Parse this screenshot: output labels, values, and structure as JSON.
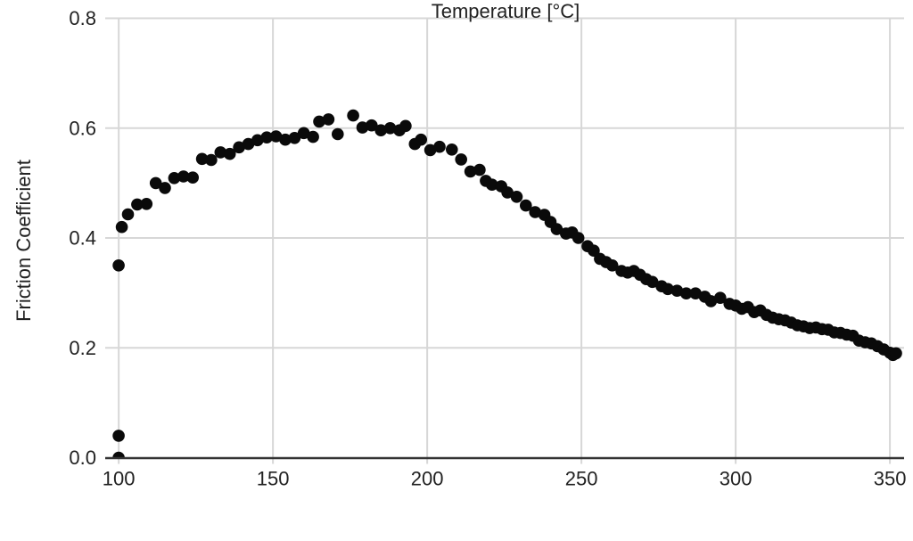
{
  "chart_data": {
    "type": "scatter",
    "title": "",
    "xlabel": "Temperature [°C]",
    "ylabel": "Friction Coefficient",
    "xlim": [
      96.2,
      354.6
    ],
    "ylim": [
      0.0,
      0.8
    ],
    "grid": true,
    "legend": "none",
    "marker": {
      "shape": "circle",
      "radius_px": 6.8,
      "color": "#0a0a0a"
    },
    "colors": {
      "grid": "#d7d7d7",
      "axis_line": "#333333",
      "tick_text": "#222222",
      "background": "#ffffff"
    },
    "xticks": {
      "values": [
        100,
        150,
        200,
        250,
        300,
        350
      ],
      "labels": [
        "100",
        "150",
        "200",
        "250",
        "300",
        "350"
      ]
    },
    "yticks": {
      "values": [
        0.0,
        0.2,
        0.4,
        0.6,
        0.8
      ],
      "labels": [
        "0.0",
        "0.2",
        "0.4",
        "0.6",
        "0.8"
      ]
    },
    "points": [
      [
        100,
        0.0
      ],
      [
        100,
        0.04
      ],
      [
        100,
        0.35
      ],
      [
        101,
        0.42
      ],
      [
        103,
        0.443
      ],
      [
        106,
        0.461
      ],
      [
        109,
        0.462
      ],
      [
        112,
        0.5
      ],
      [
        115,
        0.491
      ],
      [
        118,
        0.509
      ],
      [
        121,
        0.512
      ],
      [
        124,
        0.51
      ],
      [
        127,
        0.544
      ],
      [
        130,
        0.542
      ],
      [
        133,
        0.556
      ],
      [
        136,
        0.553
      ],
      [
        139,
        0.565
      ],
      [
        142,
        0.571
      ],
      [
        145,
        0.578
      ],
      [
        148,
        0.583
      ],
      [
        151,
        0.585
      ],
      [
        154,
        0.579
      ],
      [
        157,
        0.582
      ],
      [
        160,
        0.591
      ],
      [
        163,
        0.584
      ],
      [
        165,
        0.612
      ],
      [
        168,
        0.616
      ],
      [
        171,
        0.589
      ],
      [
        176,
        0.623
      ],
      [
        179,
        0.601
      ],
      [
        182,
        0.605
      ],
      [
        185,
        0.596
      ],
      [
        188,
        0.6
      ],
      [
        191,
        0.596
      ],
      [
        193,
        0.604
      ],
      [
        196,
        0.571
      ],
      [
        198,
        0.579
      ],
      [
        201,
        0.56
      ],
      [
        204,
        0.566
      ],
      [
        208,
        0.561
      ],
      [
        211,
        0.543
      ],
      [
        214,
        0.521
      ],
      [
        217,
        0.524
      ],
      [
        219,
        0.504
      ],
      [
        221,
        0.497
      ],
      [
        224,
        0.494
      ],
      [
        226,
        0.483
      ],
      [
        229,
        0.475
      ],
      [
        232,
        0.459
      ],
      [
        235,
        0.447
      ],
      [
        238,
        0.442
      ],
      [
        240,
        0.429
      ],
      [
        242,
        0.416
      ],
      [
        245,
        0.408
      ],
      [
        247,
        0.41
      ],
      [
        249,
        0.4
      ],
      [
        252,
        0.385
      ],
      [
        254,
        0.377
      ],
      [
        256,
        0.362
      ],
      [
        258,
        0.356
      ],
      [
        260,
        0.35
      ],
      [
        263,
        0.34
      ],
      [
        265,
        0.337
      ],
      [
        267,
        0.34
      ],
      [
        269,
        0.333
      ],
      [
        271,
        0.325
      ],
      [
        273,
        0.32
      ],
      [
        276,
        0.312
      ],
      [
        278,
        0.307
      ],
      [
        281,
        0.304
      ],
      [
        284,
        0.299
      ],
      [
        287,
        0.299
      ],
      [
        290,
        0.293
      ],
      [
        292,
        0.285
      ],
      [
        295,
        0.291
      ],
      [
        298,
        0.28
      ],
      [
        300,
        0.277
      ],
      [
        302,
        0.271
      ],
      [
        304,
        0.274
      ],
      [
        306,
        0.265
      ],
      [
        308,
        0.268
      ],
      [
        310,
        0.26
      ],
      [
        312,
        0.255
      ],
      [
        314,
        0.252
      ],
      [
        316,
        0.25
      ],
      [
        318,
        0.246
      ],
      [
        320,
        0.241
      ],
      [
        322,
        0.239
      ],
      [
        324,
        0.236
      ],
      [
        326,
        0.237
      ],
      [
        328,
        0.234
      ],
      [
        330,
        0.233
      ],
      [
        332,
        0.228
      ],
      [
        334,
        0.227
      ],
      [
        336,
        0.224
      ],
      [
        338,
        0.222
      ],
      [
        340,
        0.213
      ],
      [
        342,
        0.21
      ],
      [
        344,
        0.208
      ],
      [
        346,
        0.203
      ],
      [
        348,
        0.197
      ],
      [
        350,
        0.191
      ],
      [
        351,
        0.187
      ],
      [
        352,
        0.19
      ]
    ]
  }
}
